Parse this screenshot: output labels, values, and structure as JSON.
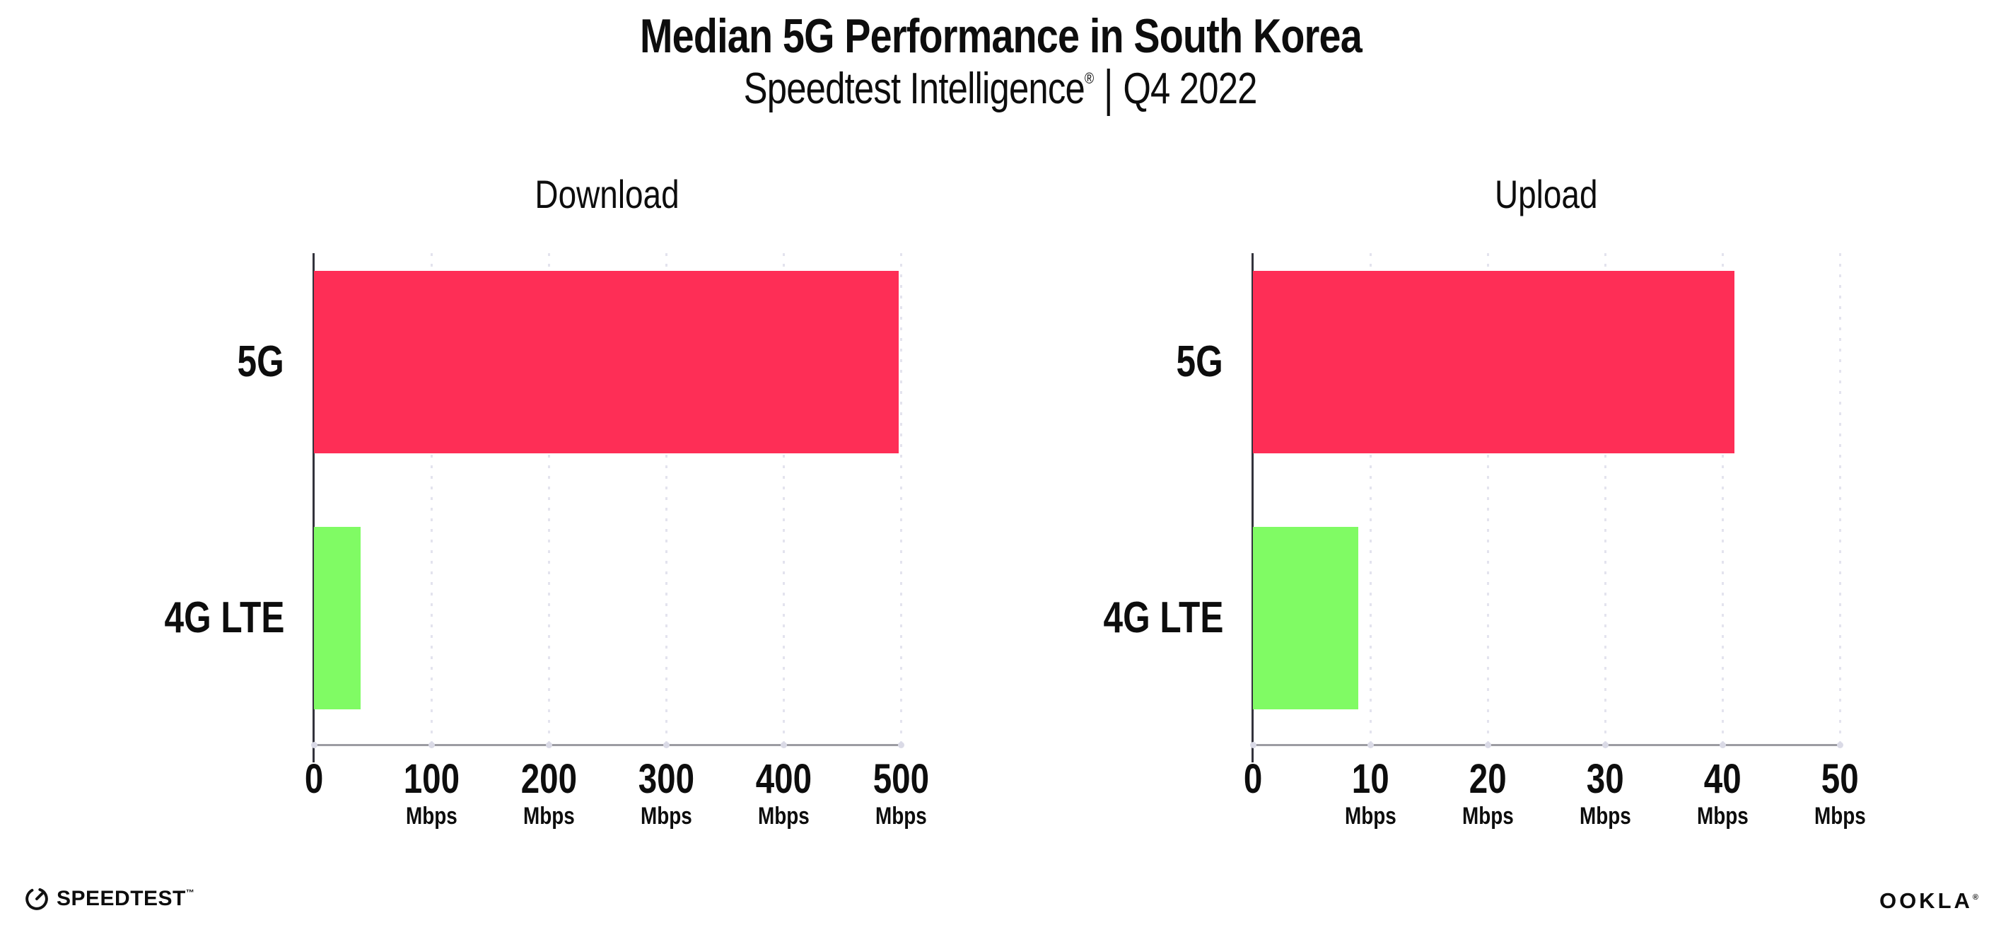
{
  "header": {
    "title": "Median 5G Performance in South Korea",
    "subtitle_brand": "Speedtest Intelligence",
    "subtitle_reg": "®",
    "subtitle_sep": "|",
    "subtitle_period": "Q4 2022"
  },
  "colors": {
    "bar_5g": "#fe2e56",
    "bar_4g_lte": "#80fb64",
    "gridline": "#e3e3ee",
    "x_axis": "#9c9ca2",
    "y_axis": "#33333c",
    "text": "#0d0d0d"
  },
  "chart_data": [
    {
      "type": "bar",
      "orientation": "horizontal",
      "title": "Download",
      "categories": [
        "5G",
        "4G LTE"
      ],
      "values": [
        498,
        40
      ],
      "unit": "Mbps",
      "xlim": [
        0,
        500
      ],
      "xticks": [
        {
          "value": 0,
          "label": "0",
          "unit": ""
        },
        {
          "value": 100,
          "label": "100",
          "unit": "Mbps"
        },
        {
          "value": 200,
          "label": "200",
          "unit": "Mbps"
        },
        {
          "value": 300,
          "label": "300",
          "unit": "Mbps"
        },
        {
          "value": 400,
          "label": "400",
          "unit": "Mbps"
        },
        {
          "value": 500,
          "label": "500",
          "unit": "Mbps"
        }
      ],
      "bar_colors": [
        "#fe2e56",
        "#80fb64"
      ],
      "grid": "dotted-vertical",
      "legend": "none"
    },
    {
      "type": "bar",
      "orientation": "horizontal",
      "title": "Upload",
      "categories": [
        "5G",
        "4G LTE"
      ],
      "values": [
        41,
        9
      ],
      "unit": "Mbps",
      "xlim": [
        0,
        50
      ],
      "xticks": [
        {
          "value": 0,
          "label": "0",
          "unit": ""
        },
        {
          "value": 10,
          "label": "10",
          "unit": "Mbps"
        },
        {
          "value": 20,
          "label": "20",
          "unit": "Mbps"
        },
        {
          "value": 30,
          "label": "30",
          "unit": "Mbps"
        },
        {
          "value": 40,
          "label": "40",
          "unit": "Mbps"
        },
        {
          "value": 50,
          "label": "50",
          "unit": "Mbps"
        }
      ],
      "bar_colors": [
        "#fe2e56",
        "#80fb64"
      ],
      "grid": "dotted-vertical",
      "legend": "none"
    }
  ],
  "footer": {
    "speedtest_label": "SPEEDTEST",
    "speedtest_tm": "™",
    "ookla_label": "OOKLA",
    "ookla_reg": "®"
  }
}
